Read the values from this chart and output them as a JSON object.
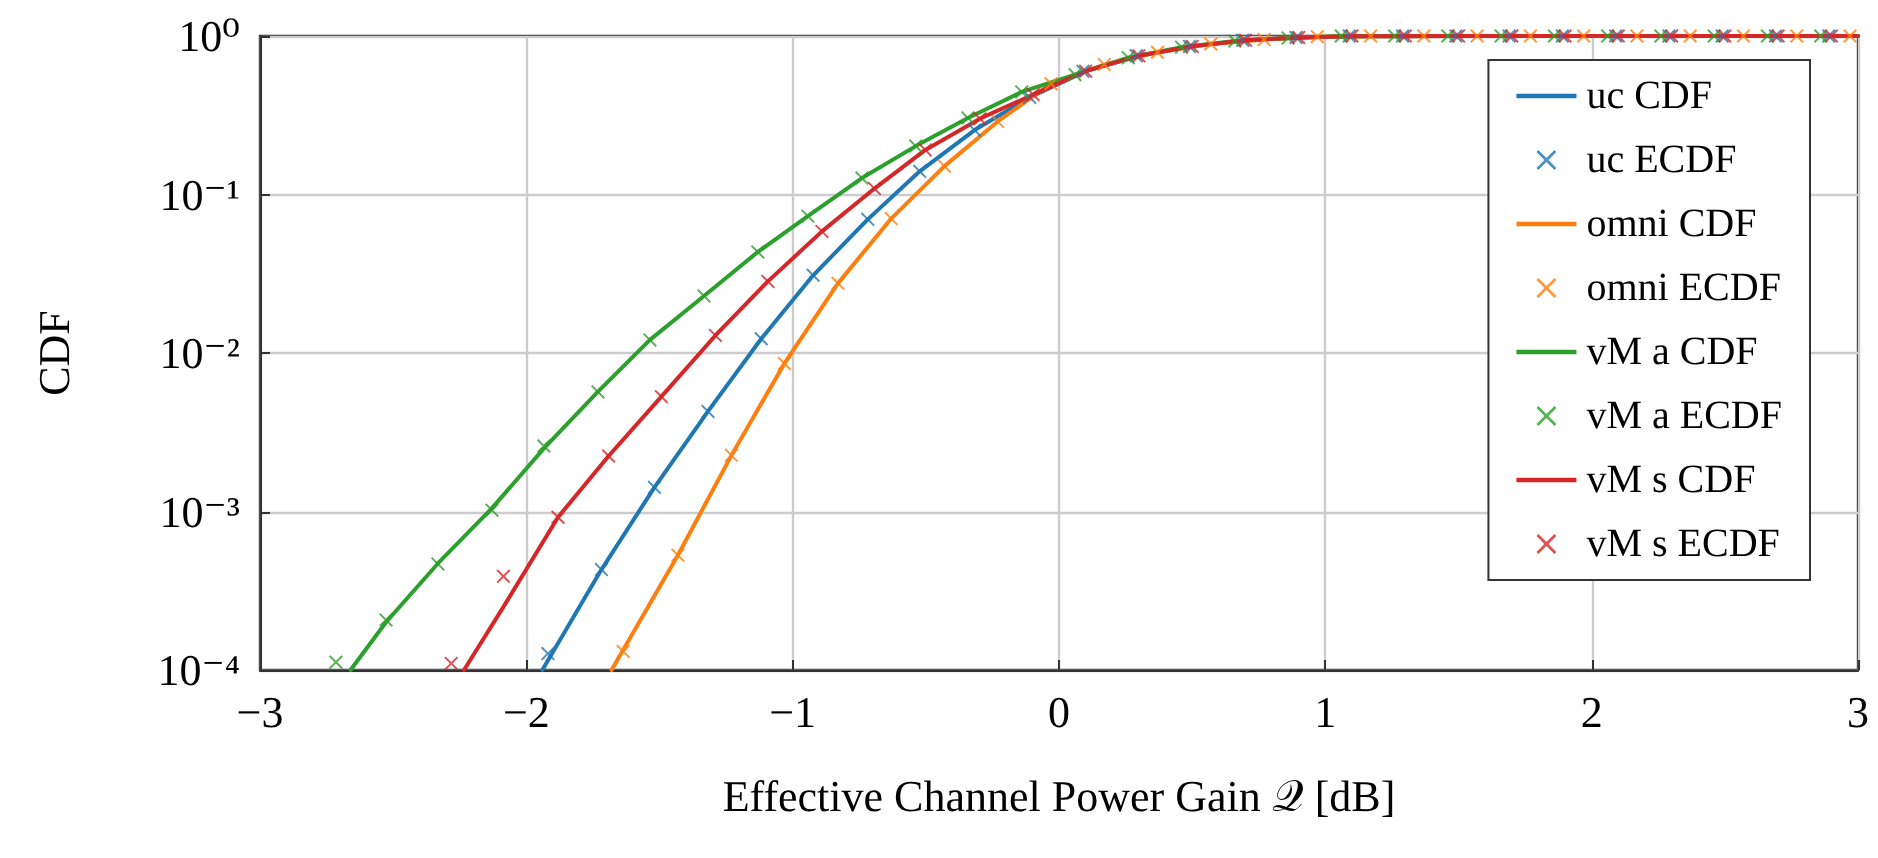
{
  "chart_data": {
    "type": "line",
    "xlabel": "Effective Channel Power Gain 𝒬 [dB]",
    "ylabel": "CDF",
    "log": "y",
    "grid": true,
    "legend": "top right",
    "xlim": [
      -3,
      3
    ],
    "xticks": [
      {
        "value": -3,
        "label": "−3"
      },
      {
        "value": -2,
        "label": "−2"
      },
      {
        "value": -1,
        "label": "−1"
      },
      0,
      1,
      2,
      3
    ],
    "ylim": [
      0.0001,
      1
    ],
    "yticks": [
      {
        "value": 0.0001,
        "label": "10⁻⁴"
      },
      {
        "value": 0.001,
        "label": "10⁻³"
      },
      {
        "value": 0.01,
        "label": "10⁻²"
      },
      {
        "value": 0.1,
        "label": "10⁻¹"
      },
      {
        "value": 1,
        "label": "10⁰"
      }
    ],
    "series": [
      {
        "name": "uc CDF",
        "marker": "none",
        "color": "#1f77b4",
        "x": [
          -1.94,
          -1.718,
          -1.519,
          -1.318,
          -1.118,
          -0.923,
          -0.718,
          -0.523,
          -0.317,
          -0.11,
          0.1,
          0.3,
          0.5,
          0.7,
          0.9,
          1.1,
          1.5,
          2,
          2.5,
          3
        ],
        "values": [
          0.0001,
          0.00043,
          0.00142,
          0.00428,
          0.0123,
          0.0309,
          0.0697,
          0.14,
          0.255,
          0.41,
          0.6,
          0.75,
          0.86,
          0.94,
          0.98,
          0.995,
          1,
          1,
          1,
          1
        ]
      },
      {
        "name": "uc ECDF",
        "type": "scatter",
        "marker": "cross",
        "color": "#1f77b4",
        "x": [
          -1.919,
          -1.718,
          -1.519,
          -1.318,
          -1.118,
          -0.923,
          -0.718,
          -0.523,
          -0.317,
          -0.11,
          0.09,
          0.29,
          0.49,
          0.69,
          0.89,
          1.09,
          1.29,
          1.49,
          1.69,
          1.89,
          2.09,
          2.29,
          2.49,
          2.69,
          2.89
        ],
        "values": [
          0.000127,
          0.00043,
          0.00142,
          0.00428,
          0.0123,
          0.0309,
          0.0697,
          0.14,
          0.255,
          0.41,
          0.6,
          0.75,
          0.86,
          0.94,
          0.98,
          1,
          1,
          1,
          1,
          1,
          1,
          1,
          1,
          1,
          1
        ]
      },
      {
        "name": "omni CDF",
        "marker": "none",
        "color": "#ff7f0e",
        "x": [
          -1.68,
          -1.431,
          -1.23,
          -1.031,
          -0.83,
          -0.63,
          -0.43,
          -0.23,
          -0.03,
          0.17,
          0.37,
          0.57,
          0.77,
          0.97,
          1.2,
          1.5,
          2,
          2.5,
          3
        ],
        "values": [
          0.0001,
          0.00053,
          0.00226,
          0.0086,
          0.0275,
          0.0705,
          0.151,
          0.289,
          0.5,
          0.66,
          0.79,
          0.89,
          0.95,
          0.99,
          0.998,
          1,
          1,
          1,
          1
        ]
      },
      {
        "name": "omni ECDF",
        "type": "scatter",
        "marker": "cross",
        "color": "#ff7f0e",
        "x": [
          -1.636,
          -1.431,
          -1.23,
          -1.031,
          -0.83,
          -0.63,
          -0.43,
          -0.23,
          -0.03,
          0.17,
          0.37,
          0.57,
          0.77,
          0.97,
          1.17,
          1.37,
          1.57,
          1.77,
          1.97,
          2.17,
          2.37,
          2.57,
          2.77,
          2.97
        ],
        "values": [
          0.000131,
          0.00053,
          0.00226,
          0.0086,
          0.0275,
          0.0705,
          0.151,
          0.289,
          0.5,
          0.66,
          0.79,
          0.89,
          0.95,
          0.99,
          1,
          1,
          1,
          1,
          1,
          1,
          1,
          1,
          1,
          1
        ]
      },
      {
        "name": "vM a CDF",
        "marker": "none",
        "color": "#2ca02c",
        "x": [
          -2.66,
          -2.527,
          -2.332,
          -2.129,
          -1.934,
          -1.731,
          -1.536,
          -1.333,
          -1.131,
          -0.943,
          -0.74,
          -0.538,
          -0.342,
          -0.14,
          0.06,
          0.26,
          0.46,
          0.66,
          0.86,
          1.06,
          1.5,
          2,
          2.5,
          3
        ],
        "values": [
          0.0001,
          0.0002,
          0.00047,
          0.00105,
          0.0025,
          0.0057,
          0.0121,
          0.0229,
          0.0434,
          0.073,
          0.127,
          0.202,
          0.304,
          0.444,
          0.57,
          0.73,
          0.85,
          0.93,
          0.97,
          0.995,
          1,
          1,
          1,
          1
        ]
      },
      {
        "name": "vM a ECDF",
        "type": "scatter",
        "marker": "cross",
        "color": "#2ca02c",
        "x": [
          -2.715,
          -2.527,
          -2.332,
          -2.129,
          -1.934,
          -1.731,
          -1.536,
          -1.333,
          -1.131,
          -0.943,
          -0.74,
          -0.538,
          -0.342,
          -0.14,
          0.06,
          0.26,
          0.46,
          0.66,
          0.86,
          1.06,
          1.26,
          1.46,
          1.66,
          1.86,
          2.06,
          2.26,
          2.46,
          2.66,
          2.86
        ],
        "values": [
          0.000112,
          0.000207,
          0.000467,
          0.00102,
          0.00259,
          0.00568,
          0.0121,
          0.0229,
          0.0434,
          0.073,
          0.127,
          0.202,
          0.304,
          0.444,
          0.57,
          0.73,
          0.85,
          0.93,
          0.97,
          1,
          1,
          1,
          1,
          1,
          1,
          1,
          1,
          1,
          1
        ]
      },
      {
        "name": "vM s CDF",
        "marker": "none",
        "color": "#d62728",
        "x": [
          -2.234,
          -2.086,
          -1.881,
          -1.691,
          -1.493,
          -1.29,
          -1.093,
          -0.89,
          -0.693,
          -0.502,
          -0.297,
          -0.097,
          0.1,
          0.3,
          0.5,
          0.7,
          0.9,
          1.1,
          1.5,
          2,
          2.5,
          3
        ],
        "values": [
          0.0001,
          0.00025,
          0.00092,
          0.00224,
          0.0053,
          0.0129,
          0.0283,
          0.0585,
          0.109,
          0.191,
          0.301,
          0.427,
          0.6,
          0.75,
          0.86,
          0.94,
          0.98,
          0.995,
          1,
          1,
          1,
          1
        ]
      },
      {
        "name": "vM s ECDF",
        "type": "scatter",
        "marker": "cross",
        "color": "#d62728",
        "x": [
          -2.282,
          -2.086,
          -1.881,
          -1.691,
          -1.493,
          -1.29,
          -1.093,
          -0.89,
          -0.693,
          -0.502,
          -0.297,
          -0.097,
          0.1,
          0.3,
          0.5,
          0.7,
          0.9,
          1.1,
          1.3,
          1.5,
          1.7,
          1.9,
          2.1,
          2.3,
          2.5,
          2.7,
          2.9
        ],
        "values": [
          0.00011,
          0.00039,
          0.00092,
          0.00224,
          0.0053,
          0.0129,
          0.0283,
          0.0585,
          0.109,
          0.191,
          0.301,
          0.427,
          0.6,
          0.75,
          0.86,
          0.94,
          0.98,
          1,
          1,
          1,
          1,
          1,
          1,
          1,
          1,
          1,
          1
        ]
      }
    ]
  }
}
